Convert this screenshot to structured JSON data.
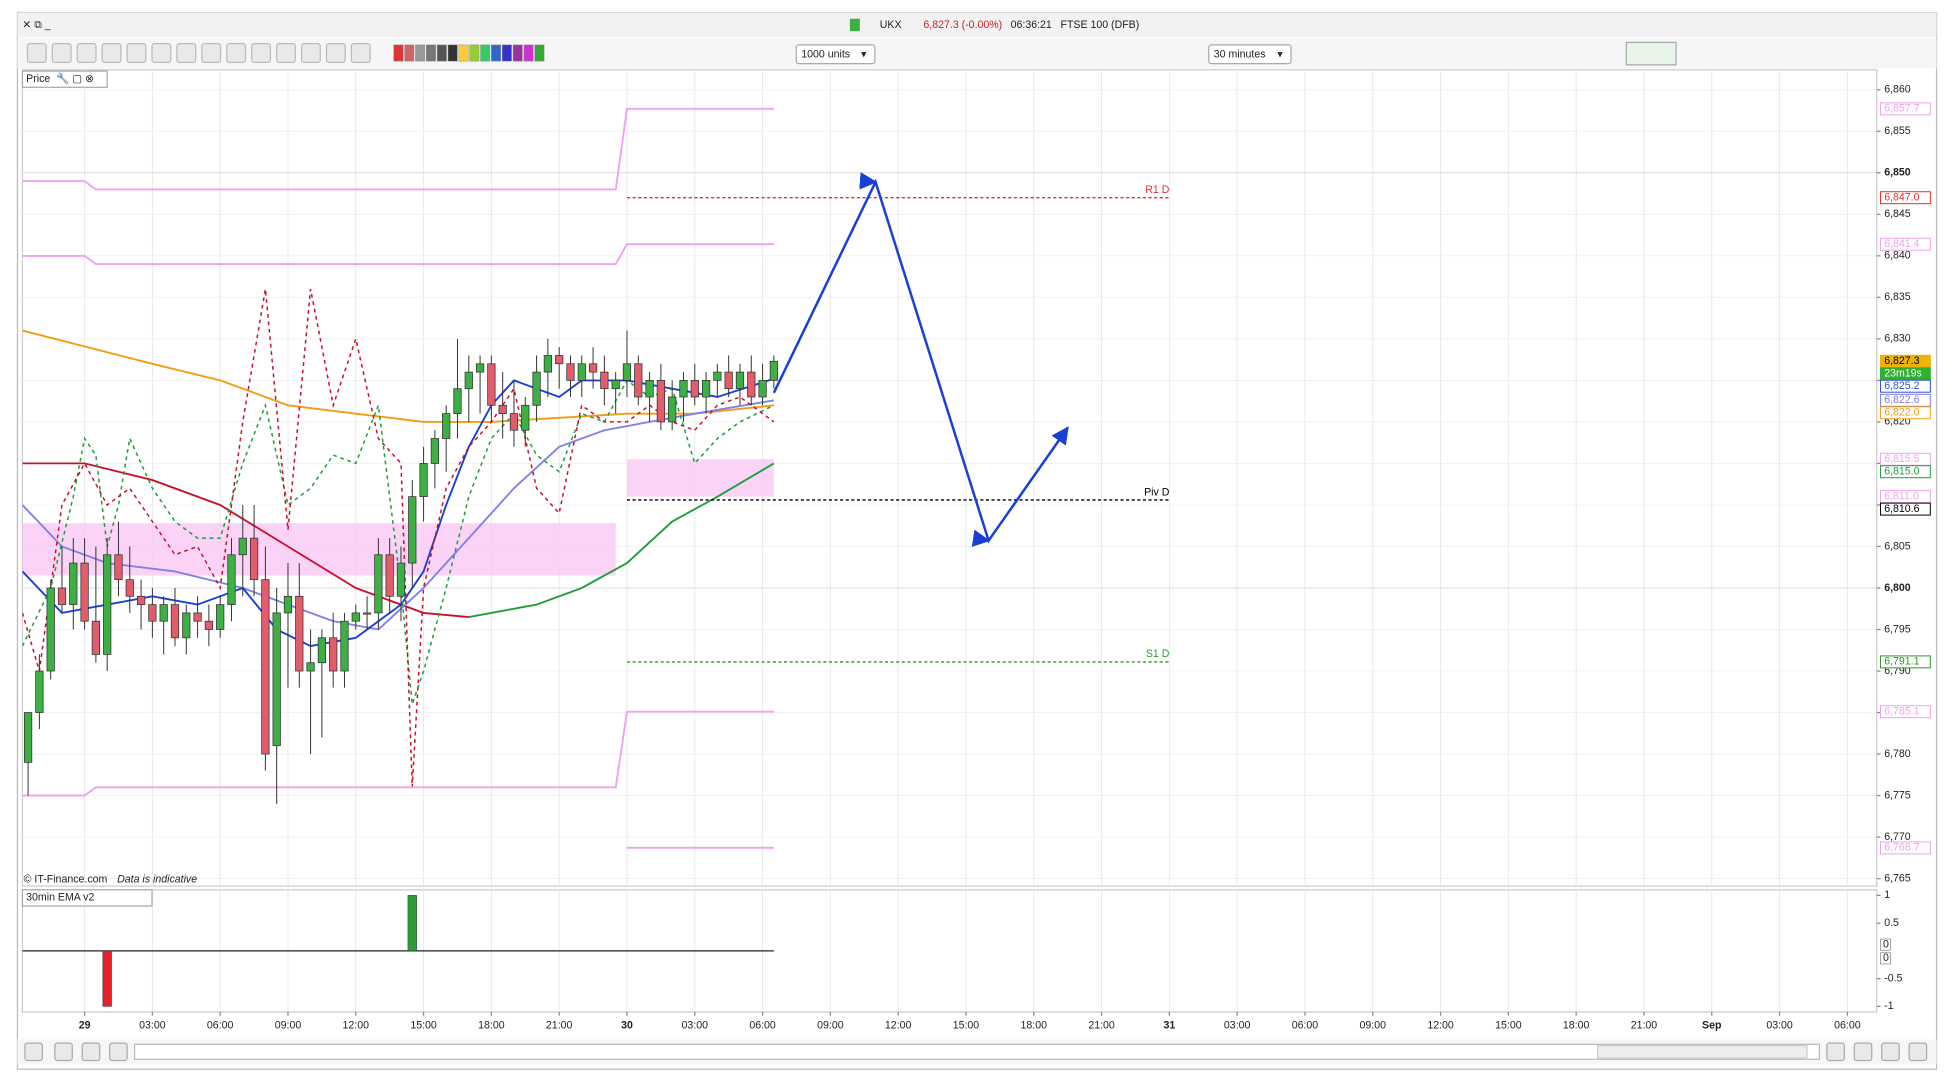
{
  "header": {
    "symbol": "UKX",
    "quote": "6,827.3 (-0.00%)",
    "time": "06:36:21",
    "instrument": "FTSE 100 (DFB)"
  },
  "toolbar": {
    "units": "1000 units",
    "interval": "30 minutes"
  },
  "footer": {
    "copyright": "© IT-Finance.com",
    "note": "Data is indicative"
  },
  "chart_data": [
    {
      "type": "candlestick",
      "pane_label": "Price",
      "xlim": [
        -2.75,
        79.3
      ],
      "ylim": [
        6764.1,
        6862.4
      ],
      "grid": true,
      "xticks": [
        {
          "value": 0,
          "label": "29"
        },
        {
          "value": 3,
          "label": "03:00"
        },
        {
          "value": 6,
          "label": "06:00"
        },
        {
          "value": 9,
          "label": "09:00"
        },
        {
          "value": 12,
          "label": "12:00"
        },
        {
          "value": 15,
          "label": "15:00"
        },
        {
          "value": 18,
          "label": "18:00"
        },
        {
          "value": 21,
          "label": "21:00"
        },
        {
          "value": 24,
          "label": "30"
        },
        {
          "value": 27,
          "label": "03:00"
        },
        {
          "value": 30,
          "label": "06:00"
        },
        {
          "value": 33,
          "label": "09:00"
        },
        {
          "value": 36,
          "label": "12:00"
        },
        {
          "value": 39,
          "label": "15:00"
        },
        {
          "value": 42,
          "label": "18:00"
        },
        {
          "value": 45,
          "label": "21:00"
        },
        {
          "value": 48,
          "label": "31"
        },
        {
          "value": 51,
          "label": "03:00"
        },
        {
          "value": 54,
          "label": "06:00"
        },
        {
          "value": 57,
          "label": "09:00"
        },
        {
          "value": 60,
          "label": "12:00"
        },
        {
          "value": 63,
          "label": "15:00"
        },
        {
          "value": 66,
          "label": "18:00"
        },
        {
          "value": 69,
          "label": "21:00"
        },
        {
          "value": 72,
          "label": "Sep"
        },
        {
          "value": 75,
          "label": "03:00"
        },
        {
          "value": 78,
          "label": "06:00"
        }
      ],
      "yticks": [
        {
          "value": 6860,
          "label": "6,860"
        },
        {
          "value": 6855,
          "label": "6,855"
        },
        {
          "value": 6850,
          "label": "6,850"
        },
        {
          "value": 6845,
          "label": "6,845"
        },
        {
          "value": 6840,
          "label": "6,840"
        },
        {
          "value": 6835,
          "label": "6,835"
        },
        {
          "value": 6830,
          "label": "6,830"
        },
        {
          "value": 6825,
          "label": "6,825"
        },
        {
          "value": 6820,
          "label": "6,820"
        },
        {
          "value": 6815,
          "label": "6,815"
        },
        {
          "value": 6810,
          "label": "6,810"
        },
        {
          "value": 6805,
          "label": "6,805"
        },
        {
          "value": 6800,
          "label": "6,800"
        },
        {
          "value": 6795,
          "label": "6,795"
        },
        {
          "value": 6790,
          "label": "6,790"
        },
        {
          "value": 6785,
          "label": "6,785"
        },
        {
          "value": 6780,
          "label": "6,780"
        },
        {
          "value": 6775,
          "label": "6,775"
        },
        {
          "value": 6770,
          "label": "6,770"
        },
        {
          "value": 6765,
          "label": "6,765"
        }
      ],
      "up_color": "#3cb043",
      "down_color": "#e25c6c",
      "x": [
        -2.5,
        -2,
        -1.5,
        -1,
        -0.5,
        0,
        0.5,
        1,
        1.5,
        2,
        2.5,
        3,
        3.5,
        4,
        4.5,
        5,
        5.5,
        6,
        6.5,
        7,
        7.5,
        8,
        8.5,
        9,
        9.5,
        10,
        10.5,
        11,
        11.5,
        12,
        12.5,
        13,
        13.5,
        14,
        14.5,
        15,
        15.5,
        16,
        16.5,
        17,
        17.5,
        18,
        18.5,
        19,
        19.5,
        20,
        20.5,
        21,
        21.5,
        22,
        22.5,
        23,
        23.5,
        24,
        24.5,
        25,
        25.5,
        26,
        26.5,
        27,
        27.5,
        28,
        28.5,
        29,
        29.5,
        30,
        30.5
      ],
      "open": [
        6779,
        6785,
        6790,
        6800,
        6798,
        6803,
        6796,
        6792,
        6804,
        6801,
        6799,
        6798,
        6796,
        6798,
        6794,
        6797,
        6796,
        6795,
        6798,
        6804,
        6806,
        6801,
        6781,
        6797,
        6799,
        6790,
        6791,
        6794,
        6790,
        6796,
        6797,
        6797,
        6804,
        6799,
        6803,
        6811,
        6815,
        6818,
        6821,
        6824,
        6826,
        6827,
        6822,
        6821,
        6819,
        6822,
        6826,
        6828,
        6827,
        6825,
        6827,
        6826,
        6824,
        6825,
        6827,
        6823,
        6825,
        6820,
        6823,
        6825,
        6823,
        6825,
        6826,
        6824,
        6826,
        6823,
        6825
      ],
      "high": [
        6785,
        6792,
        6801,
        6805,
        6806,
        6806,
        6805,
        6806,
        6808,
        6805,
        6801,
        6800,
        6799,
        6800,
        6798,
        6799,
        6798,
        6799,
        6806,
        6810,
        6810,
        6805,
        6800,
        6803,
        6803,
        6795,
        6795,
        6797,
        6797,
        6798,
        6799,
        6806,
        6806,
        6805,
        6813,
        6817,
        6819,
        6822,
        6830,
        6828,
        6828,
        6828,
        6826,
        6825,
        6823,
        6828,
        6830,
        6829,
        6828,
        6828,
        6829,
        6828,
        6826,
        6831,
        6828,
        6826,
        6827,
        6825,
        6826,
        6827,
        6826,
        6827,
        6828,
        6827,
        6828,
        6827,
        6828
      ],
      "low": [
        6775,
        6783,
        6789,
        6797,
        6795,
        6795,
        6791,
        6790,
        6799,
        6797,
        6795,
        6794,
        6792,
        6793,
        6792,
        6794,
        6793,
        6794,
        6796,
        6799,
        6799,
        6778,
        6774,
        6788,
        6788,
        6780,
        6782,
        6788,
        6788,
        6795,
        6795,
        6795,
        6797,
        6796,
        6800,
        6808,
        6812,
        6814,
        6818,
        6820,
        6821,
        6820,
        6818,
        6817,
        6817,
        6820,
        6823,
        6824,
        6823,
        6823,
        6824,
        6822,
        6821,
        6823,
        6822,
        6820,
        6819,
        6819,
        6820,
        6822,
        6821,
        6823,
        6823,
        6822,
        6822,
        6822,
        6824
      ],
      "close": [
        6785,
        6790,
        6800,
        6798,
        6803,
        6796,
        6792,
        6804,
        6801,
        6799,
        6798,
        6796,
        6798,
        6794,
        6797,
        6796,
        6795,
        6798,
        6804,
        6806,
        6801,
        6780,
        6797,
        6799,
        6790,
        6791,
        6794,
        6790,
        6796,
        6797,
        6797,
        6804,
        6799,
        6803,
        6811,
        6815,
        6818,
        6821,
        6824,
        6826,
        6827,
        6822,
        6821,
        6819,
        6822,
        6826,
        6828,
        6827,
        6825,
        6827,
        6826,
        6824,
        6825,
        6827,
        6823,
        6825,
        6820,
        6823,
        6825,
        6823,
        6825,
        6826,
        6824,
        6826,
        6823,
        6825,
        6827.3
      ],
      "series": [
        {
          "color": "#f39c12",
          "dash": false,
          "x": [
            -2.75,
            3,
            6,
            9,
            12,
            15,
            18,
            21,
            24,
            27,
            30.5
          ],
          "values": [
            6831,
            6827,
            6825,
            6822,
            6821,
            6820,
            6820,
            6820.5,
            6821,
            6821,
            6822
          ]
        },
        {
          "color": "#c8102e",
          "dash": false,
          "x": [
            -2.75,
            0,
            3,
            6,
            9,
            12,
            15,
            17
          ],
          "values": [
            6815,
            6815,
            6813,
            6810,
            6805,
            6800,
            6797,
            6796.5
          ]
        },
        {
          "color": "#1e9e3a",
          "dash": false,
          "x": [
            17,
            20,
            22,
            24,
            26,
            28,
            30.5
          ],
          "values": [
            6796.5,
            6798,
            6800,
            6803,
            6808,
            6811,
            6815
          ]
        },
        {
          "color": "#8080e8",
          "dash": false,
          "x": [
            -2.75,
            -1,
            1,
            4,
            7,
            9,
            11,
            13,
            15,
            17,
            19,
            21,
            23,
            25,
            27,
            30.5
          ],
          "values": [
            6810,
            6805,
            6803,
            6802,
            6800,
            6798,
            6796,
            6795,
            6800,
            6806,
            6812,
            6817,
            6819,
            6820,
            6821,
            6822.6
          ]
        },
        {
          "color": "#1a3fd6",
          "dash": false,
          "x": [
            -2.75,
            -1,
            1,
            3,
            5,
            7,
            8.5,
            10,
            12,
            14,
            15,
            16,
            17,
            18,
            19,
            21,
            22,
            24,
            26,
            28,
            30.5
          ],
          "values": [
            6802,
            6797,
            6798,
            6799,
            6798,
            6800,
            6795,
            6793,
            6794,
            6798,
            6802,
            6810,
            6817,
            6822,
            6825,
            6823,
            6825,
            6825,
            6824,
            6823,
            6825.2
          ]
        },
        {
          "color": "#1e9e3a",
          "dash": true,
          "x": [
            -2.75,
            -1.5,
            -0.5,
            0,
            0.5,
            1,
            1.5,
            2,
            3,
            4,
            5,
            6,
            7,
            8,
            9,
            10,
            11,
            12,
            13,
            14,
            14.5,
            15,
            16,
            17,
            18,
            19,
            20,
            21,
            22,
            23,
            24,
            25,
            26,
            27,
            28,
            29,
            30.5
          ],
          "values": [
            6793,
            6800,
            6811,
            6818,
            6816,
            6805,
            6810,
            6818,
            6812,
            6808,
            6806,
            6806,
            6815,
            6822,
            6810,
            6812,
            6816,
            6815,
            6822,
            6800,
            6786,
            6790,
            6800,
            6811,
            6818,
            6821,
            6816,
            6814,
            6821,
            6820,
            6825,
            6823,
            6824,
            6815,
            6818,
            6820,
            6822
          ]
        },
        {
          "color": "#c8102e",
          "dash": true,
          "x": [
            -2.75,
            -2,
            -1,
            0,
            1,
            2,
            3,
            4,
            5,
            6,
            7,
            8,
            9,
            10,
            11,
            12,
            13,
            14,
            14.5,
            15,
            16,
            17,
            18,
            19,
            20,
            21,
            22,
            23,
            24,
            25,
            26,
            27,
            28,
            29,
            30.5
          ],
          "values": [
            6797,
            6790,
            6810,
            6815,
            6810,
            6812,
            6808,
            6804,
            6805,
            6800,
            6820,
            6836,
            6807,
            6836,
            6822,
            6830,
            6818,
            6815,
            6776,
            6800,
            6812,
            6817,
            6820,
            6824,
            6812,
            6809,
            6822,
            6820,
            6820,
            6822,
            6820,
            6819,
            6822,
            6823,
            6820
          ]
        },
        {
          "color": "#f0a0f0",
          "dash": false,
          "x": [
            -2.75,
            0,
            0.5,
            23.5,
            24,
            30.5
          ],
          "values": [
            6849,
            6849,
            6848,
            6848,
            6857.7,
            6857.7
          ]
        },
        {
          "color": "#f0a0f0",
          "dash": false,
          "x": [
            -2.75,
            0,
            0.5,
            23.5,
            24,
            30.5
          ],
          "values": [
            6840,
            6840,
            6839,
            6839,
            6841.4,
            6841.4
          ]
        },
        {
          "color": "#f0a0f0",
          "dash": false,
          "x": [
            -2.75,
            0,
            0.5,
            23.5,
            24,
            30.5
          ],
          "values": [
            6775,
            6775,
            6776,
            6776,
            6785.1,
            6785.1
          ]
        },
        {
          "color": "#f0a0f0",
          "dash": false,
          "x": [
            24,
            30.5
          ],
          "values": [
            6768.7,
            6768.7
          ]
        }
      ],
      "bands": [
        {
          "color": "#f9c8f5",
          "x": [
            -2.75,
            23.5
          ],
          "values": [
            6801.5,
            6807.8
          ]
        },
        {
          "color": "#f9c8f5",
          "x": [
            24,
            30.5
          ],
          "values": [
            6811.0,
            6815.5
          ]
        }
      ],
      "pivots": [
        {
          "label": "R1 D",
          "value": 6847.0,
          "color": "#e03030",
          "x": [
            24,
            48
          ]
        },
        {
          "label": "Piv D",
          "value": 6810.6,
          "color": "#000000",
          "x": [
            24,
            48
          ]
        },
        {
          "label": "S1 D",
          "value": 6791.1,
          "color": "#2a9a2a",
          "x": [
            24,
            48
          ]
        }
      ],
      "annotations": [
        {
          "color": "#1a3fd6",
          "x": [
            30.5,
            35,
            40,
            43.5
          ],
          "values": [
            6823.5,
            6848.9,
            6805.7,
            6819.3
          ]
        }
      ],
      "price_labels": [
        {
          "value": 6857.7,
          "label": "6,857.7",
          "color": "#f0a0f0",
          "filled": false
        },
        {
          "value": 6847.0,
          "label": "6,847.0",
          "color": "#e03030",
          "filled": false
        },
        {
          "value": 6841.4,
          "label": "6,841.4",
          "color": "#f0a0f0",
          "filled": false
        },
        {
          "value": 6827.3,
          "label": "6,827.3",
          "color": "#f0b400",
          "filled": true
        },
        {
          "value": 6825.2,
          "label": "6,825.2",
          "color": "#3050e0",
          "filled": false
        },
        {
          "value": 6822.6,
          "label": "6,822.6",
          "color": "#8080e8",
          "filled": false
        },
        {
          "value": 6822.0,
          "label": "6,822.0",
          "color": "#f39c12",
          "filled": false
        },
        {
          "value": 6815.5,
          "label": "6,815.5",
          "color": "#f0a0f0",
          "filled": false
        },
        {
          "value": 6815.0,
          "label": "6,815.0",
          "color": "#1e9e3a",
          "filled": false
        },
        {
          "value": 6811.0,
          "label": "6,811.0",
          "color": "#f0a0f0",
          "filled": false
        },
        {
          "value": 6810.6,
          "label": "6,810.6",
          "color": "#000000",
          "filled": false
        },
        {
          "value": 6791.1,
          "label": "6,791.1",
          "color": "#2a9a2a",
          "filled": false
        },
        {
          "value": 6785.1,
          "label": "6,785.1",
          "color": "#f0a0f0",
          "filled": false
        },
        {
          "value": 6768.7,
          "label": "6,768.7",
          "color": "#f0a0f0",
          "filled": false
        }
      ],
      "countdown": "23m19s",
      "countdown_color": "#30b030"
    },
    {
      "type": "bar",
      "pane_label": "30min EMA v2",
      "xlim": [
        -2.75,
        79.3
      ],
      "ylim": [
        -1.1,
        1.1
      ],
      "yticks": [
        1,
        0.5,
        -0.5,
        -1
      ],
      "x": [
        1,
        14.5
      ],
      "values": [
        -1,
        1
      ],
      "colors": [
        "#e8202a",
        "#2e9b3a"
      ],
      "last_values": [
        0,
        0
      ]
    }
  ]
}
